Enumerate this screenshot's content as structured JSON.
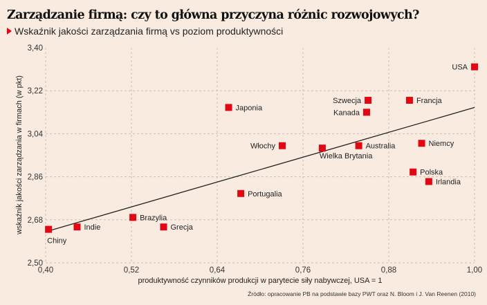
{
  "header": {
    "title": "Zarządzanie firmą: czy to główna przyczyna różnic rozwojowych?",
    "subtitle": "Wskaźnik jakości zarządzania firmą vs poziom produktywności"
  },
  "colors": {
    "marker": "#e30613",
    "accent": "#e30613",
    "background": "#f9ebdf",
    "trend": "#222222",
    "grid": "#c9bcb0"
  },
  "chart_data": {
    "type": "scatter",
    "title": "Zarządzanie firmą: czy to główna przyczyna różnic rozwojowych?",
    "subtitle": "Wskaźnik jakości zarządzania firmą vs poziom produktywności",
    "xlabel": "produktywność czynników produkcji w parytecie siły nabywczej, USA = 1",
    "ylabel": "wskaźnik jakości zarządzania w firmach (w pkt)",
    "xlim": [
      0.4,
      1.0
    ],
    "ylim": [
      2.5,
      3.4
    ],
    "xticks": [
      "0,40",
      "0,52",
      "0,64",
      "0,76",
      "0,88",
      "1,00"
    ],
    "xtick_values": [
      0.4,
      0.52,
      0.64,
      0.76,
      0.88,
      1.0
    ],
    "yticks": [
      "3,40",
      "3,22",
      "3,04",
      "2,86",
      "2,68",
      "2,50"
    ],
    "ytick_values": [
      3.4,
      3.22,
      3.04,
      2.86,
      2.68,
      2.5
    ],
    "grid": true,
    "points": [
      {
        "label": "Chiny",
        "x": 0.404,
        "y": 2.64,
        "label_pos": "below"
      },
      {
        "label": "Indie",
        "x": 0.444,
        "y": 2.65,
        "label_pos": "right"
      },
      {
        "label": "Brazylia",
        "x": 0.522,
        "y": 2.69,
        "label_pos": "right"
      },
      {
        "label": "Grecja",
        "x": 0.565,
        "y": 2.65,
        "label_pos": "right"
      },
      {
        "label": "Japonia",
        "x": 0.656,
        "y": 3.15,
        "label_pos": "right"
      },
      {
        "label": "Portugalia",
        "x": 0.673,
        "y": 2.79,
        "label_pos": "right"
      },
      {
        "label": "Włochy",
        "x": 0.731,
        "y": 2.99,
        "label_pos": "left"
      },
      {
        "label": "Wielka Brytania",
        "x": 0.787,
        "y": 2.98,
        "label_pos": "below-right"
      },
      {
        "label": "Australia",
        "x": 0.838,
        "y": 2.99,
        "label_pos": "right"
      },
      {
        "label": "Szwecja",
        "x": 0.851,
        "y": 3.18,
        "label_pos": "left"
      },
      {
        "label": "Kanada",
        "x": 0.849,
        "y": 3.13,
        "label_pos": "left"
      },
      {
        "label": "Francja",
        "x": 0.909,
        "y": 3.18,
        "label_pos": "right"
      },
      {
        "label": "Niemcy",
        "x": 0.926,
        "y": 3.0,
        "label_pos": "right"
      },
      {
        "label": "Polska",
        "x": 0.914,
        "y": 2.88,
        "label_pos": "right"
      },
      {
        "label": "Irlandia",
        "x": 0.936,
        "y": 2.84,
        "label_pos": "right"
      },
      {
        "label": "USA",
        "x": 1.0,
        "y": 3.32,
        "label_pos": "left"
      }
    ],
    "trendline": {
      "x": [
        0.4,
        1.0
      ],
      "y": [
        2.63,
        3.15
      ]
    },
    "source": "Źródło: opracowanie PB na podstawie bazy PWT oraz N. Bloom i J. Van Reenen (2010)"
  }
}
